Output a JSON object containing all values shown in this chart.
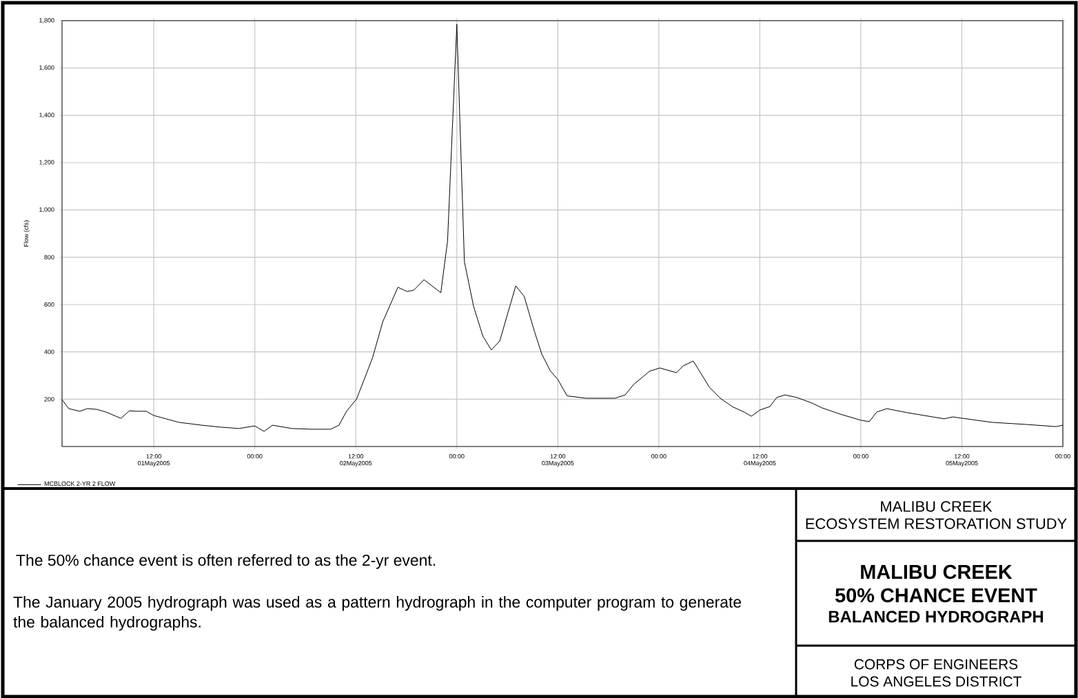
{
  "chart_data": {
    "type": "line",
    "title": "MALIBU CREEK",
    "subtitle": "50% CHANCE EVENT",
    "ylabel": "Flow (cfs)",
    "annotations": [
      "The 50% chance event is often referred to as the 2-yr event.",
      "The January 2005 hydrograph was used as a pattern hydrograph in the computer program to generate the balanced hydrographs.",
      "BALANCED HYDROGRAPH",
      "MALIBU CREEK",
      "ECOSYSTEM RESTORATION STUDY",
      "CORPS OF ENGINEERS",
      "LOS ANGELES DISTRICT"
    ],
    "x": [
      "2005-05-01T01:06",
      "2005-05-01T01:54",
      "2005-05-01T03:12",
      "2005-05-01T04:06",
      "2005-05-01T05:12",
      "2005-05-01T06:18",
      "2005-05-01T08:06",
      "2005-05-01T09:06",
      "2005-05-01T09:54",
      "2005-05-01T11:06",
      "2005-05-01T12:00",
      "2005-05-01T15:00",
      "2005-05-01T17:42",
      "2005-05-01T19:54",
      "2005-05-01T22:06",
      "2005-05-02T00:00",
      "2005-05-02T01:06",
      "2005-05-02T02:06",
      "2005-05-02T04:24",
      "2005-05-02T06:48",
      "2005-05-02T09:00",
      "2005-05-02T10:00",
      "2005-05-02T10:54",
      "2005-05-02T12:06",
      "2005-05-02T14:00",
      "2005-05-02T15:12",
      "2005-05-02T17:00",
      "2005-05-02T18:06",
      "2005-05-02T18:54",
      "2005-05-02T20:06",
      "2005-05-02T22:06",
      "2005-05-02T22:54",
      "2005-05-03T00:00",
      "2005-05-03T00:54",
      "2005-05-03T02:00",
      "2005-05-03T03:06",
      "2005-05-03T04:06",
      "2005-05-03T05:06",
      "2005-05-03T07:00",
      "2005-05-03T08:00",
      "2005-05-03T09:12",
      "2005-05-03T10:06",
      "2005-05-03T11:06",
      "2005-05-03T12:00",
      "2005-05-03T13:06",
      "2005-05-03T15:18",
      "2005-05-03T18:48",
      "2005-05-03T20:00",
      "2005-05-03T21:00",
      "2005-05-03T22:54",
      "2005-05-04T00:06",
      "2005-05-04T02:06",
      "2005-05-04T02:54",
      "2005-05-04T04:06",
      "2005-05-04T06:00",
      "2005-05-04T07:18",
      "2005-05-04T08:42",
      "2005-05-04T10:06",
      "2005-05-04T11:00",
      "2005-05-04T12:00",
      "2005-05-04T13:12",
      "2005-05-04T14:00",
      "2005-05-04T15:00",
      "2005-05-04T16:24",
      "2005-05-04T18:06",
      "2005-05-04T19:24",
      "2005-05-04T21:48",
      "2005-05-05T00:00",
      "2005-05-05T01:00",
      "2005-05-05T01:54",
      "2005-05-05T03:06",
      "2005-05-05T05:30",
      "2005-05-05T09:54",
      "2005-05-05T10:54",
      "2005-05-05T12:06",
      "2005-05-05T15:36",
      "2005-05-05T19:42",
      "2005-05-05T23:12",
      "2005-05-06T00:00"
    ],
    "series": [
      {
        "name": "MCBLOCK 2-YR 2 FLOW",
        "color": "#000000",
        "values": [
          198,
          160,
          149,
          160,
          157,
          146,
          119,
          151,
          149,
          149,
          131,
          102,
          90,
          82,
          76,
          87,
          64,
          90,
          76,
          73,
          73,
          90,
          149,
          201,
          376,
          527,
          673,
          655,
          661,
          705,
          650,
          868,
          1785,
          781,
          591,
          466,
          408,
          446,
          679,
          635,
          489,
          390,
          320,
          283,
          214,
          204,
          204,
          218,
          262,
          318,
          332,
          312,
          341,
          361,
          251,
          204,
          169,
          146,
          128,
          154,
          169,
          207,
          218,
          207,
          185,
          163,
          134,
          111,
          105,
          146,
          160,
          143,
          117,
          125,
          119,
          102,
          93,
          84,
          90
        ]
      }
    ],
    "xlim": [
      "2005-05-01T01:06",
      "2005-05-06T00:00"
    ],
    "xticks": [
      {
        "value": "2005-05-01T12:00",
        "label": "12:00 01May2005"
      },
      {
        "value": "2005-05-02T00:00",
        "label": "00:00"
      },
      {
        "value": "2005-05-02T12:00",
        "label": "12:00 02May2005"
      },
      {
        "value": "2005-05-03T00:00",
        "label": "00:00"
      },
      {
        "value": "2005-05-03T12:00",
        "label": "12:00 03May2005"
      },
      {
        "value": "2005-05-04T00:00",
        "label": "00:00"
      },
      {
        "value": "2005-05-04T12:00",
        "label": "12:00 04May2005"
      },
      {
        "value": "2005-05-05T00:00",
        "label": "00:00"
      },
      {
        "value": "2005-05-05T12:00",
        "label": "12:00 05May2005"
      },
      {
        "value": "2005-05-06T00:00",
        "label": "00:00"
      }
    ],
    "ylim": [
      0,
      1800
    ],
    "yticks": [
      200,
      400,
      600,
      800,
      {
        "value": 1000,
        "label": "1,000"
      },
      {
        "value": 1200,
        "label": "1,200"
      },
      {
        "value": 1400,
        "label": "1,400"
      },
      {
        "value": 1600,
        "label": "1,600"
      },
      {
        "value": 1800,
        "label": "1,800"
      }
    ],
    "grid": true,
    "legend": "bottom left"
  }
}
